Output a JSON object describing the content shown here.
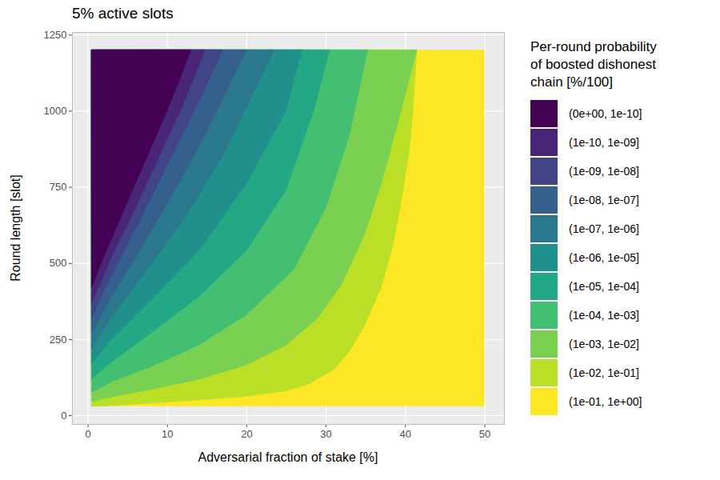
{
  "chart_data": {
    "type": "contour",
    "title": "5% active slots",
    "x_label": "Adversarial fraction of stake [%]",
    "y_label": "Round length [slot]",
    "xlim": [
      -1.975,
      52.475
    ],
    "ylim": [
      -28.5,
      1258.5
    ],
    "xticks": [
      0,
      10,
      20,
      30,
      40,
      50
    ],
    "yticks": [
      0,
      250,
      500,
      750,
      1000,
      1250
    ],
    "grid": true,
    "data_extent": {
      "x": [
        0.5,
        50
      ],
      "y": [
        30,
        1200
      ]
    },
    "legend_title": "Per-round probability\nof boosted dishonest\nchain [%/100]",
    "bands": [
      {
        "label": "(0e+00, 1e-10]",
        "color": "#440154",
        "outer_edge": [
          [
            0.5,
            420
          ],
          [
            2,
            520
          ],
          [
            4,
            640
          ],
          [
            6,
            760
          ],
          [
            8,
            880
          ],
          [
            10,
            1000
          ],
          [
            12,
            1130
          ],
          [
            13,
            1200
          ]
        ]
      },
      {
        "label": "(1e-10, 1e-09]",
        "color": "#482576",
        "outer_edge": [
          [
            0.5,
            370
          ],
          [
            3,
            520
          ],
          [
            6,
            680
          ],
          [
            9,
            850
          ],
          [
            12,
            1020
          ],
          [
            14.8,
            1200
          ]
        ]
      },
      {
        "label": "(1e-09, 1e-08]",
        "color": "#414487",
        "outer_edge": [
          [
            0.5,
            320
          ],
          [
            3,
            460
          ],
          [
            6,
            610
          ],
          [
            10,
            820
          ],
          [
            14,
            1030
          ],
          [
            17,
            1200
          ]
        ]
      },
      {
        "label": "(1e-08, 1e-07]",
        "color": "#35608D",
        "outer_edge": [
          [
            0.5,
            270
          ],
          [
            3,
            390
          ],
          [
            7,
            560
          ],
          [
            11,
            740
          ],
          [
            15,
            930
          ],
          [
            20,
            1200
          ]
        ]
      },
      {
        "label": "(1e-07, 1e-06]",
        "color": "#2A788E",
        "outer_edge": [
          [
            0.5,
            220
          ],
          [
            3,
            320
          ],
          [
            7,
            460
          ],
          [
            12,
            640
          ],
          [
            17,
            850
          ],
          [
            23.5,
            1200
          ]
        ]
      },
      {
        "label": "(1e-06, 1e-05]",
        "color": "#21908C",
        "outer_edge": [
          [
            0.5,
            170
          ],
          [
            3,
            250
          ],
          [
            8,
            380
          ],
          [
            14,
            540
          ],
          [
            20,
            760
          ],
          [
            25,
            1000
          ],
          [
            27,
            1200
          ]
        ]
      },
      {
        "label": "(1e-05, 1e-04]",
        "color": "#22A884",
        "outer_edge": [
          [
            0.5,
            120
          ],
          [
            3,
            175
          ],
          [
            8,
            270
          ],
          [
            14,
            390
          ],
          [
            20,
            540
          ],
          [
            25,
            740
          ],
          [
            28.5,
            1000
          ],
          [
            30.5,
            1200
          ]
        ]
      },
      {
        "label": "(1e-04, 1e-03]",
        "color": "#43BF71",
        "outer_edge": [
          [
            0.5,
            75
          ],
          [
            3,
            110
          ],
          [
            8,
            160
          ],
          [
            14,
            230
          ],
          [
            20,
            330
          ],
          [
            26,
            480
          ],
          [
            30,
            680
          ],
          [
            33,
            920
          ],
          [
            35.3,
            1200
          ]
        ]
      },
      {
        "label": "(1e-03, 1e-02]",
        "color": "#7AD151",
        "outer_edge": [
          [
            0.5,
            45
          ],
          [
            3,
            60
          ],
          [
            8,
            85
          ],
          [
            14,
            118
          ],
          [
            20,
            165
          ],
          [
            25,
            230
          ],
          [
            29,
            320
          ],
          [
            32,
            430
          ],
          [
            35,
            600
          ],
          [
            37,
            760
          ],
          [
            39,
            950
          ],
          [
            40.5,
            1100
          ],
          [
            41.5,
            1200
          ]
        ]
      },
      {
        "label": "(1e-02, 1e-01]",
        "color": "#BBDF27",
        "outer_edge": [
          [
            0.5,
            30
          ],
          [
            2,
            30
          ],
          [
            8,
            40
          ],
          [
            14,
            50
          ],
          [
            20,
            62
          ],
          [
            25,
            80
          ],
          [
            28,
            105
          ],
          [
            31,
            150
          ],
          [
            33,
            210
          ],
          [
            35,
            300
          ],
          [
            37,
            420
          ],
          [
            38.5,
            560
          ],
          [
            39.5,
            700
          ],
          [
            40.5,
            860
          ],
          [
            41,
            1000
          ],
          [
            41.5,
            1200
          ]
        ]
      },
      {
        "label": "(1e-01, 1e+00]",
        "color": "#FDE725"
      }
    ]
  }
}
